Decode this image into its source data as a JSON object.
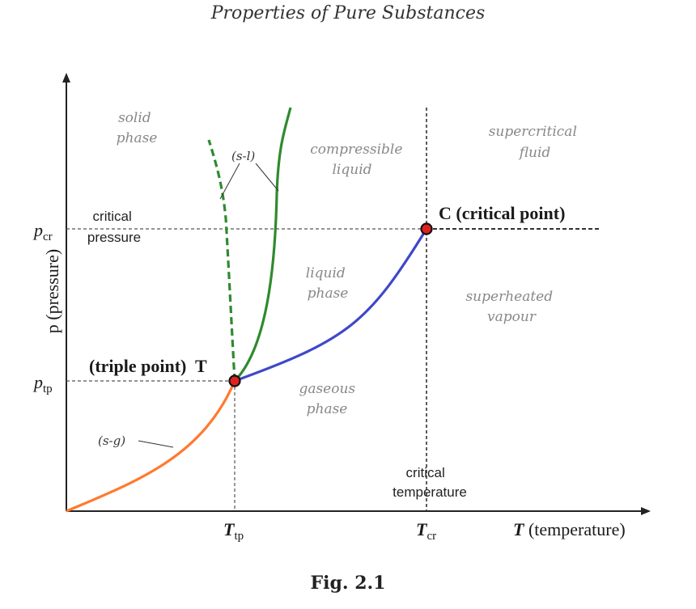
{
  "header": {
    "title": "Properties of Pure Substances"
  },
  "caption": {
    "text": "Fig. 2.1"
  },
  "axes": {
    "y_label": "p (pressure)",
    "x_label_symbol": "T",
    "x_label_text": " (temperature)",
    "ticks": {
      "p_cr_main": "p",
      "p_cr_sub": "cr",
      "p_tp_main": "p",
      "p_tp_sub": "tp",
      "t_tp_main": "T",
      "t_tp_sub": "tp",
      "t_cr_main": "T",
      "t_cr_sub": "cr"
    }
  },
  "regions": {
    "solid_1": "solid",
    "solid_2": "phase",
    "compressible_1": "compressible",
    "compressible_2": "liquid",
    "supercritical_1": "supercritical",
    "supercritical_2": "fluid",
    "liquid_1": "liquid",
    "liquid_2": "phase",
    "superheated_1": "superheated",
    "superheated_2": "vapour",
    "gaseous_1": "gaseous",
    "gaseous_2": "phase"
  },
  "labels": {
    "critical_pressure_1": "critical",
    "critical_pressure_2": "pressure",
    "critical_temperature_1": "critical",
    "critical_temperature_2": "temperature",
    "critical_point": "C (critical point)",
    "triple_point": "(triple point)  T",
    "sl": "(s-l)",
    "sg": "(s-g)"
  },
  "colors": {
    "sublimation_curve": "#ff7a2e",
    "vaporization_curve": "#3f48c8",
    "fusion_curve": "#2f8a2f",
    "point_fill": "#e02020"
  }
}
